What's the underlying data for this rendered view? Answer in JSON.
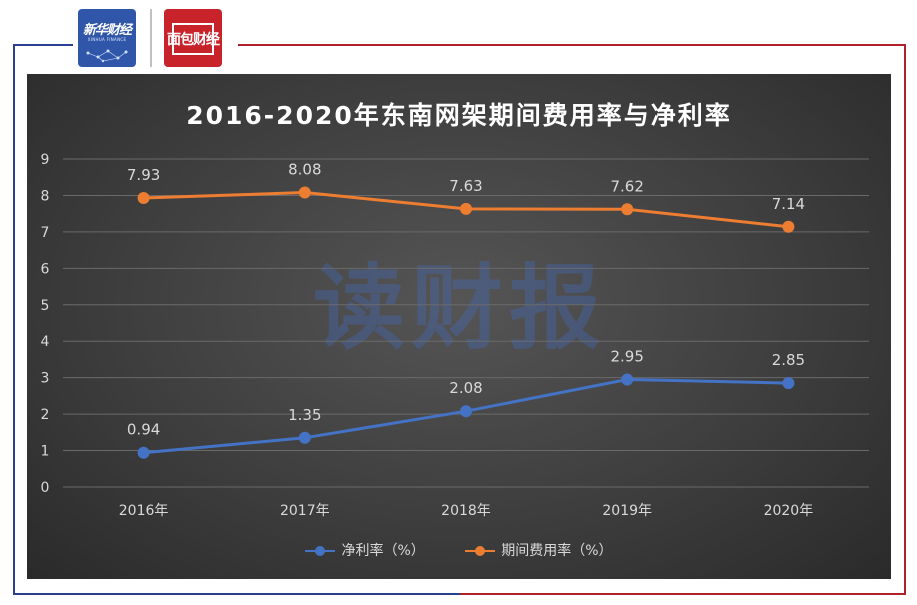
{
  "logos": {
    "xinhua_title": "新华财经",
    "xinhua_sub": "XINHUA FINANCE",
    "mian_text": "面包财经"
  },
  "colors": {
    "series_net_profit": "#4472c4",
    "series_expense": "#ed7d31",
    "frame_blue": "#2a3f8f",
    "frame_red": "#b0202a"
  },
  "watermark": "读财报",
  "chart_data": {
    "type": "line",
    "title": "2016-2020年东南网架期间费用率与净利率",
    "categories": [
      "2016年",
      "2017年",
      "2018年",
      "2019年",
      "2020年"
    ],
    "series": [
      {
        "name": "净利率（%）",
        "values": [
          0.94,
          1.35,
          2.08,
          2.95,
          2.85
        ],
        "labels": [
          "0.94",
          "1.35",
          "2.08",
          "2.95",
          "2.85"
        ]
      },
      {
        "name": "期间费用率（%）",
        "values": [
          7.93,
          8.08,
          7.63,
          7.62,
          7.14
        ],
        "labels": [
          "7.93",
          "8.08",
          "7.63",
          "7.62",
          "7.14"
        ]
      }
    ],
    "yticks": [
      "0",
      "1",
      "2",
      "3",
      "4",
      "5",
      "6",
      "7",
      "8",
      "9"
    ],
    "ylim": [
      0,
      9
    ],
    "grid": true,
    "legend": "bottom"
  }
}
